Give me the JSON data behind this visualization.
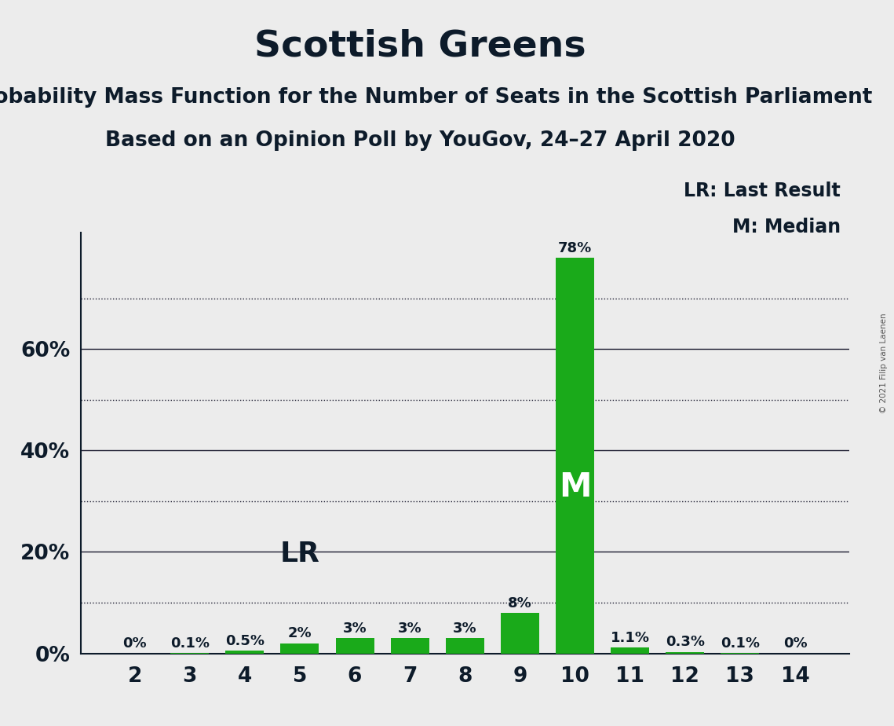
{
  "title": "Scottish Greens",
  "subtitle1": "Probability Mass Function for the Number of Seats in the Scottish Parliament",
  "subtitle2": "Based on an Opinion Poll by YouGov, 24–27 April 2020",
  "copyright": "© 2021 Filip van Laenen",
  "legend_line1": "LR: Last Result",
  "legend_line2": "M: Median",
  "categories": [
    2,
    3,
    4,
    5,
    6,
    7,
    8,
    9,
    10,
    11,
    12,
    13,
    14
  ],
  "values": [
    0.0,
    0.1,
    0.5,
    2.0,
    3.0,
    3.0,
    3.0,
    8.0,
    78.0,
    1.1,
    0.3,
    0.1,
    0.0
  ],
  "labels": [
    "0%",
    "0.1%",
    "0.5%",
    "2%",
    "3%",
    "3%",
    "3%",
    "8%",
    "78%",
    "1.1%",
    "0.3%",
    "0.1%",
    "0%"
  ],
  "bar_color": "#1aaa1a",
  "median_bar": 10,
  "lr_bar": 5,
  "background_color": "#ececec",
  "plot_bg_color": "#ececec",
  "title_fontsize": 34,
  "subtitle_fontsize": 19,
  "ytick_labels": [
    "0%",
    "20%",
    "40%",
    "60%"
  ],
  "ytick_values": [
    0,
    20,
    40,
    60
  ],
  "solid_grid_values": [
    0,
    20,
    40,
    60
  ],
  "dotted_grid_values": [
    10,
    30,
    50,
    70
  ],
  "ylim": [
    0,
    83
  ]
}
